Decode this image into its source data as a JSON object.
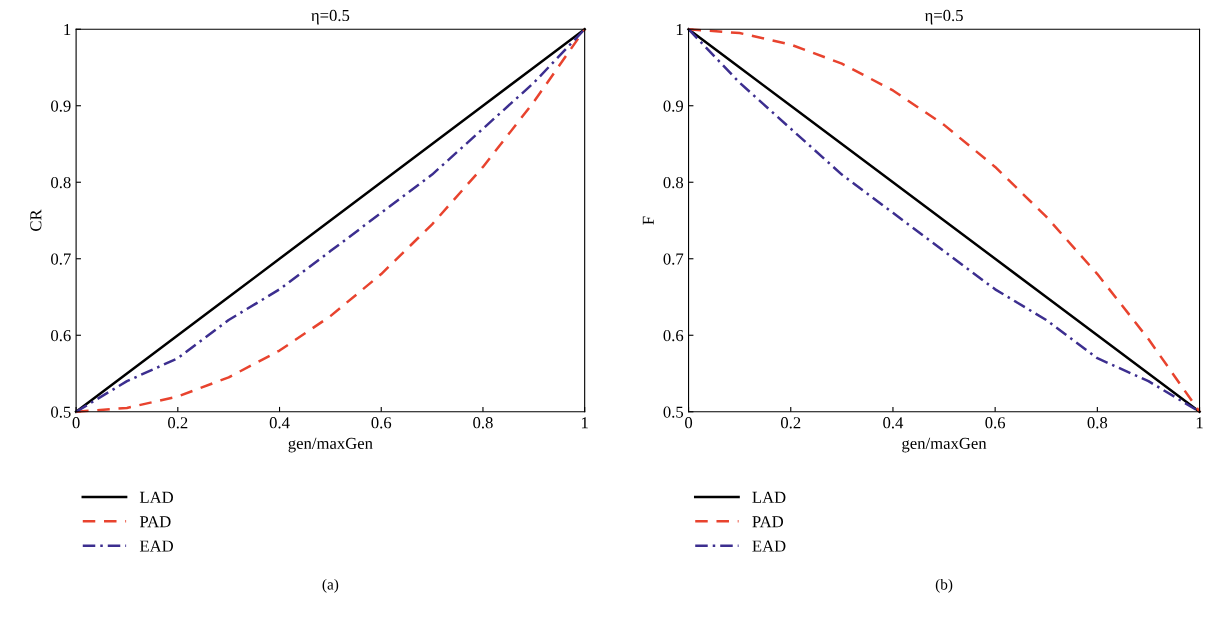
{
  "chart_data": [
    {
      "type": "line",
      "title": "η=0.5",
      "xlabel": "gen/maxGen",
      "ylabel": "CR",
      "x": [
        0,
        0.1,
        0.2,
        0.3,
        0.4,
        0.5,
        0.6,
        0.7,
        0.8,
        0.9,
        1
      ],
      "series": [
        {
          "name": "LAD",
          "color": "#000000",
          "line_style": "solid",
          "values": [
            0.5,
            0.55,
            0.6,
            0.65,
            0.7,
            0.75,
            0.8,
            0.85,
            0.9,
            0.95,
            1
          ]
        },
        {
          "name": "PAD",
          "color": "#e8432e",
          "line_style": "dashed",
          "values": [
            0.5,
            0.505,
            0.52,
            0.545,
            0.58,
            0.625,
            0.68,
            0.745,
            0.82,
            0.905,
            1
          ]
        },
        {
          "name": "EAD",
          "color": "#3c2e8f",
          "line_style": "dashdot",
          "values": [
            0.5,
            0.54,
            0.57,
            0.62,
            0.66,
            0.71,
            0.76,
            0.81,
            0.87,
            0.93,
            1
          ]
        }
      ],
      "xlim": [
        0,
        1
      ],
      "ylim": [
        0.5,
        1
      ],
      "xticks": [
        0,
        0.2,
        0.4,
        0.6,
        0.8,
        1
      ],
      "yticks": [
        0.5,
        0.6,
        0.7,
        0.8,
        0.9,
        1
      ],
      "grid": false,
      "legend": "bottom left",
      "annotations": [
        "(a)"
      ]
    },
    {
      "type": "line",
      "title": "η=0.5",
      "xlabel": "gen/maxGen",
      "ylabel": "F",
      "x": [
        0,
        0.1,
        0.2,
        0.3,
        0.4,
        0.5,
        0.6,
        0.7,
        0.8,
        0.9,
        1
      ],
      "series": [
        {
          "name": "LAD",
          "color": "#000000",
          "line_style": "solid",
          "values": [
            1,
            0.95,
            0.9,
            0.85,
            0.8,
            0.75,
            0.7,
            0.65,
            0.6,
            0.55,
            0.5
          ]
        },
        {
          "name": "PAD",
          "color": "#e8432e",
          "line_style": "dashed",
          "values": [
            1,
            0.995,
            0.98,
            0.955,
            0.92,
            0.875,
            0.82,
            0.755,
            0.68,
            0.595,
            0.5
          ]
        },
        {
          "name": "EAD",
          "color": "#3c2e8f",
          "line_style": "dashdot",
          "values": [
            1,
            0.93,
            0.87,
            0.81,
            0.76,
            0.71,
            0.66,
            0.62,
            0.57,
            0.54,
            0.5
          ]
        }
      ],
      "xlim": [
        0,
        1
      ],
      "ylim": [
        0.5,
        1
      ],
      "xticks": [
        0,
        0.2,
        0.4,
        0.6,
        0.8,
        1
      ],
      "yticks": [
        0.5,
        0.6,
        0.7,
        0.8,
        0.9,
        1
      ],
      "grid": false,
      "legend": "bottom left",
      "annotations": [
        "(b)"
      ]
    }
  ]
}
